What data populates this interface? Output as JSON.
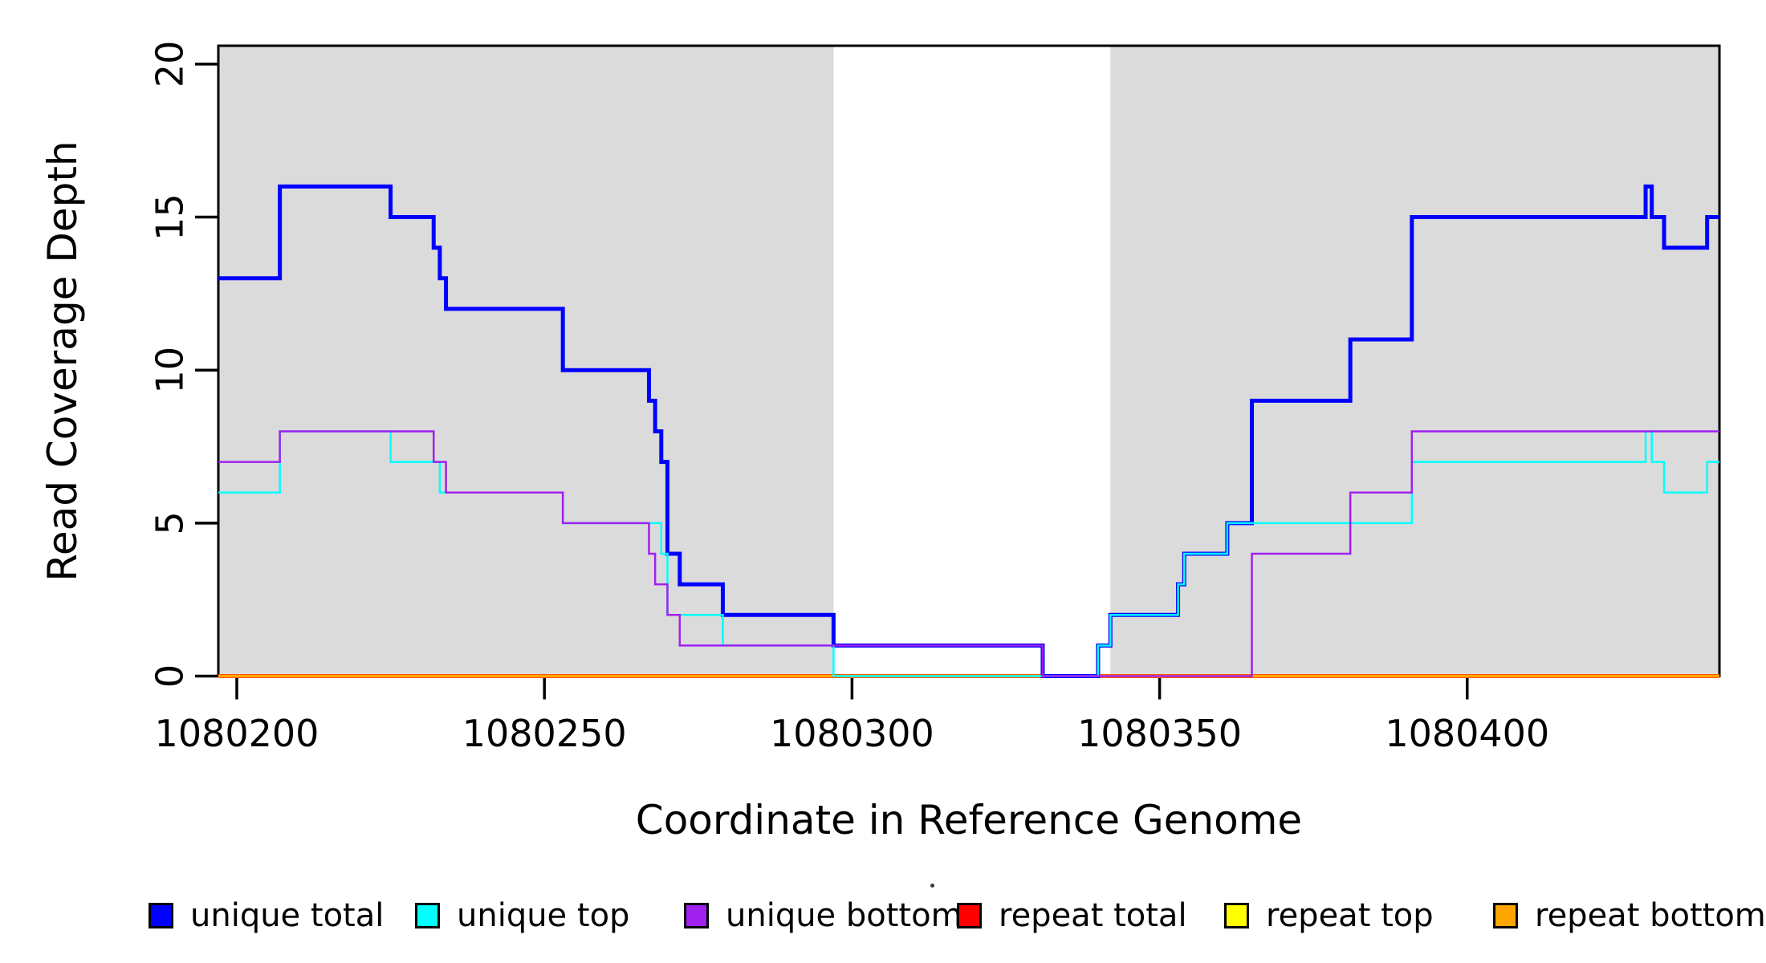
{
  "figure": {
    "y_axis_title": "Read Coverage Depth",
    "x_axis_title": "Coordinate in Reference Genome"
  },
  "chart_data": {
    "type": "line",
    "subtype": "step",
    "title": "",
    "xlabel": "Coordinate in Reference Genome",
    "ylabel": "Read Coverage Depth",
    "xlim": [
      1080197,
      1080441
    ],
    "ylim": [
      0,
      20.6
    ],
    "x_ticks": [
      1080200,
      1080250,
      1080300,
      1080350,
      1080400
    ],
    "y_ticks": [
      0,
      5,
      10,
      15,
      20
    ],
    "grid": false,
    "legend_position": "bottom",
    "shaded_regions": [
      {
        "x0": 1080197,
        "x1": 1080297,
        "color": "#DBDBDB"
      },
      {
        "x0": 1080342,
        "x1": 1080441,
        "color": "#DBDBDB"
      }
    ],
    "series": [
      {
        "name": "unique total",
        "color": "#0000FF",
        "width": 5,
        "steps": [
          [
            1080197,
            13
          ],
          [
            1080207,
            16
          ],
          [
            1080225,
            15
          ],
          [
            1080232,
            14
          ],
          [
            1080233,
            13
          ],
          [
            1080234,
            12
          ],
          [
            1080253,
            10
          ],
          [
            1080267,
            9
          ],
          [
            1080268,
            8
          ],
          [
            1080269,
            7
          ],
          [
            1080270,
            4
          ],
          [
            1080272,
            3
          ],
          [
            1080279,
            2
          ],
          [
            1080297,
            1
          ],
          [
            1080331,
            0
          ],
          [
            1080340,
            1
          ],
          [
            1080342,
            2
          ],
          [
            1080353,
            3
          ],
          [
            1080354,
            4
          ],
          [
            1080361,
            5
          ],
          [
            1080365,
            9
          ],
          [
            1080381,
            11
          ],
          [
            1080391,
            15
          ],
          [
            1080429,
            16
          ],
          [
            1080430,
            15
          ],
          [
            1080432,
            14
          ],
          [
            1080439,
            15
          ]
        ]
      },
      {
        "name": "unique top",
        "color": "#00FFFF",
        "width": 2.5,
        "steps": [
          [
            1080197,
            6
          ],
          [
            1080207,
            8
          ],
          [
            1080225,
            7
          ],
          [
            1080233,
            6
          ],
          [
            1080253,
            5
          ],
          [
            1080269,
            4
          ],
          [
            1080270,
            2
          ],
          [
            1080279,
            1
          ],
          [
            1080297,
            0
          ],
          [
            1080340,
            1
          ],
          [
            1080342,
            2
          ],
          [
            1080353,
            3
          ],
          [
            1080354,
            4
          ],
          [
            1080361,
            5
          ],
          [
            1080391,
            7
          ],
          [
            1080429,
            8
          ],
          [
            1080430,
            7
          ],
          [
            1080432,
            6
          ],
          [
            1080439,
            7
          ]
        ]
      },
      {
        "name": "unique bottom",
        "color": "#A020F0",
        "width": 2.5,
        "steps": [
          [
            1080197,
            7
          ],
          [
            1080207,
            8
          ],
          [
            1080232,
            7
          ],
          [
            1080234,
            6
          ],
          [
            1080253,
            5
          ],
          [
            1080267,
            4
          ],
          [
            1080268,
            3
          ],
          [
            1080270,
            2
          ],
          [
            1080272,
            1
          ],
          [
            1080331,
            0
          ],
          [
            1080365,
            4
          ],
          [
            1080381,
            6
          ],
          [
            1080391,
            8
          ]
        ]
      },
      {
        "name": "repeat total",
        "color": "#FF0000",
        "width": 5,
        "steps": [
          [
            1080197,
            0
          ]
        ]
      },
      {
        "name": "repeat top",
        "color": "#FFFF00",
        "width": 2.5,
        "steps": [
          [
            1080197,
            0
          ]
        ]
      },
      {
        "name": "repeat bottom",
        "color": "#FFA500",
        "width": 4,
        "steps": [
          [
            1080197,
            0
          ]
        ]
      }
    ],
    "draw_order": [
      "repeat total",
      "repeat top",
      "repeat bottom",
      "unique total",
      "unique top",
      "unique bottom"
    ]
  },
  "legend": {
    "items": [
      {
        "label": "unique total",
        "color": "#0000FF"
      },
      {
        "label": "unique top",
        "color": "#00FFFF"
      },
      {
        "label": "unique bottom",
        "color": "#A020F0"
      },
      {
        "label": "repeat total",
        "color": "#FF0000"
      },
      {
        "label": "repeat top",
        "color": "#FFFF00"
      },
      {
        "label": "repeat bottom",
        "color": "#FFA500"
      }
    ]
  }
}
